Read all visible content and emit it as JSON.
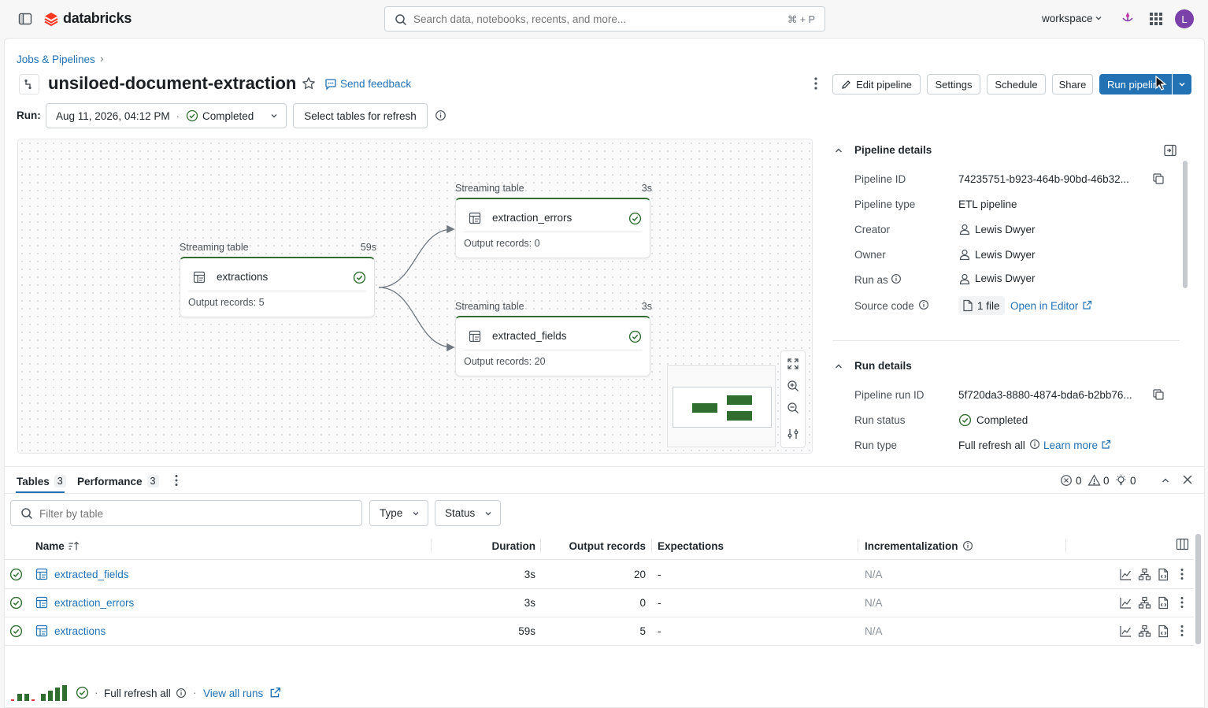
{
  "topbar": {
    "logo_text": "databricks",
    "search_placeholder": "Search data, notebooks, recents, and more...",
    "search_shortcut": "⌘ + P",
    "workspace_label": "workspace",
    "avatar_initial": "L"
  },
  "breadcrumb": {
    "label": "Jobs & Pipelines",
    "separator": "›"
  },
  "header": {
    "title": "unsiloed-document-extraction",
    "feedback_label": "Send feedback",
    "edit_label": "Edit pipeline",
    "settings_label": "Settings",
    "schedule_label": "Schedule",
    "share_label": "Share",
    "run_label": "Run pipeline"
  },
  "runbar": {
    "label": "Run:",
    "run_date": "Aug 11, 2026, 04:12 PM",
    "dot": "·",
    "status": "Completed",
    "refresh_label": "Select tables for refresh"
  },
  "graph": {
    "nodes": [
      {
        "type_label": "Streaming table",
        "duration": "59s",
        "name": "extractions",
        "output": "Output records: 5"
      },
      {
        "type_label": "Streaming table",
        "duration": "3s",
        "name": "extraction_errors",
        "output": "Output records: 0"
      },
      {
        "type_label": "Streaming table",
        "duration": "3s",
        "name": "extracted_fields",
        "output": "Output records: 20"
      }
    ],
    "status_color": "#2f6e2f"
  },
  "pipeline_details": {
    "heading": "Pipeline details",
    "rows": [
      {
        "label": "Pipeline ID",
        "value": "74235751-b923-464b-90bd-46b32..."
      },
      {
        "label": "Pipeline type",
        "value": "ETL pipeline"
      },
      {
        "label": "Creator",
        "value": "Lewis Dwyer"
      },
      {
        "label": "Owner",
        "value": "Lewis Dwyer"
      },
      {
        "label": "Run as",
        "value": "Lewis Dwyer"
      },
      {
        "label": "Source code",
        "value": "1 file",
        "link": "Open in Editor"
      }
    ]
  },
  "run_details": {
    "heading": "Run details",
    "rows": [
      {
        "label": "Pipeline run ID",
        "value": "5f720da3-8880-4874-bda6-b2bb76..."
      },
      {
        "label": "Run status",
        "value": "Completed"
      },
      {
        "label": "Run type",
        "value": "Full refresh all",
        "link": "Learn more"
      }
    ]
  },
  "bottom": {
    "tabs": [
      {
        "label": "Tables",
        "count": "3"
      },
      {
        "label": "Performance",
        "count": "3"
      }
    ],
    "errors": "0",
    "warnings": "0",
    "info": "0",
    "filter_placeholder": "Filter by table",
    "type_label": "Type",
    "status_label": "Status",
    "columns": [
      "Name",
      "Duration",
      "Output records",
      "Expectations",
      "Incrementalization"
    ],
    "rows": [
      {
        "name": "extracted_fields",
        "duration": "3s",
        "records": "20",
        "expectations": "-",
        "incrementalization": "N/A"
      },
      {
        "name": "extraction_errors",
        "duration": "3s",
        "records": "0",
        "expectations": "-",
        "incrementalization": "N/A"
      },
      {
        "name": "extractions",
        "duration": "59s",
        "records": "5",
        "expectations": "-",
        "incrementalization": "N/A"
      }
    ]
  },
  "footer": {
    "dot": "·",
    "run_type": "Full refresh all",
    "view_all": "View all runs"
  },
  "colors": {
    "accent": "#2272b4",
    "primary_button": "#2272b4",
    "success": "#2f6e2f",
    "brand": "#ff3621"
  }
}
